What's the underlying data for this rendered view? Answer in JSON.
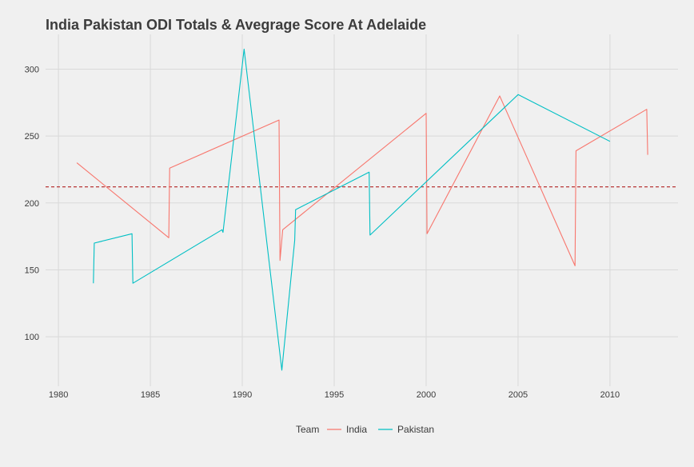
{
  "chart_data": {
    "type": "line",
    "title": "India Pakistan ODI Totals & Avegrage Score At Adelaide",
    "xlabel": "",
    "ylabel": "",
    "xlim": [
      1979.3,
      2013.7
    ],
    "ylim": [
      63,
      326
    ],
    "x_ticks": [
      1980,
      1985,
      1990,
      1995,
      2000,
      2005,
      2010
    ],
    "y_ticks": [
      100,
      150,
      200,
      250,
      300
    ],
    "grid": true,
    "average_line": {
      "value": 212,
      "color": "#b22222"
    },
    "legend": {
      "title": "Team",
      "placement": "bottom"
    },
    "series": [
      {
        "name": "India",
        "color": "#f8766d",
        "points": [
          [
            1981.0,
            230
          ],
          [
            1986.0,
            174
          ],
          [
            1986.05,
            226
          ],
          [
            1992.0,
            262
          ],
          [
            1992.05,
            157
          ],
          [
            1992.2,
            180
          ],
          [
            2000.0,
            267
          ],
          [
            2000.05,
            177
          ],
          [
            2004.0,
            280
          ],
          [
            2008.1,
            153
          ],
          [
            2008.15,
            239
          ],
          [
            2012.0,
            270
          ],
          [
            2012.05,
            236
          ]
        ]
      },
      {
        "name": "Pakistan",
        "color": "#00bfc4",
        "points": [
          [
            1981.9,
            140
          ],
          [
            1981.95,
            170
          ],
          [
            1984.0,
            177
          ],
          [
            1984.05,
            140
          ],
          [
            1988.9,
            180
          ],
          [
            1988.95,
            178
          ],
          [
            1990.1,
            315
          ],
          [
            1992.15,
            75
          ],
          [
            1992.85,
            172
          ],
          [
            1992.9,
            195
          ],
          [
            1996.9,
            223
          ],
          [
            1996.95,
            176
          ],
          [
            2005.0,
            281
          ],
          [
            2010.0,
            246
          ]
        ]
      }
    ]
  }
}
